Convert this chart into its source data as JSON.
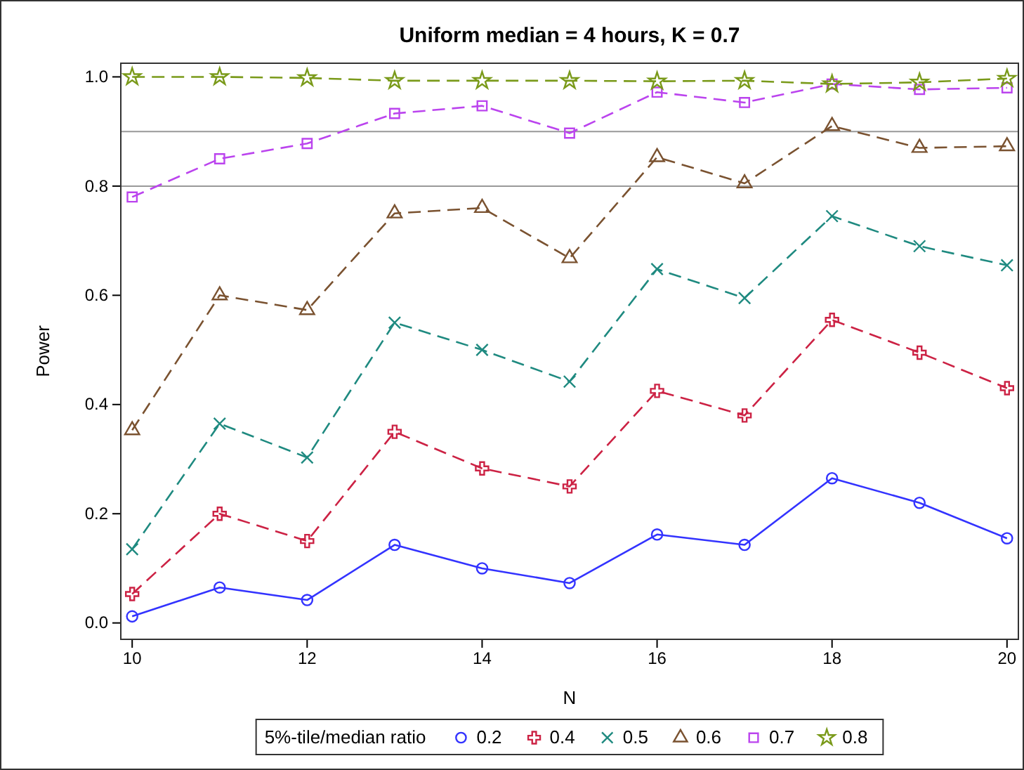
{
  "chart_data": {
    "type": "line",
    "title": "Uniform median = 4 hours, K = 0.7",
    "xlabel": "N",
    "ylabel": "Power",
    "legend_title": "5%-tile/median ratio",
    "legend": "bottom",
    "grid": false,
    "x": [
      10,
      11,
      12,
      13,
      14,
      15,
      16,
      17,
      18,
      19,
      20
    ],
    "xlim": [
      9.87,
      20.13
    ],
    "xticks": [
      10,
      12,
      14,
      16,
      18,
      20
    ],
    "ylim": [
      -0.03,
      1.025
    ],
    "yticks": [
      {
        "value": 0,
        "label": "0.0"
      },
      {
        "value": 0.2,
        "label": "0.2"
      },
      {
        "value": 0.4,
        "label": "0.4"
      },
      {
        "value": 0.6,
        "label": "0.6"
      },
      {
        "value": 0.8,
        "label": "0.8"
      },
      {
        "value": 1,
        "label": "1.0"
      }
    ],
    "ref_lines": [
      {
        "axis": "y",
        "value": 0.8,
        "color": "#999999"
      },
      {
        "axis": "y",
        "value": 0.9,
        "color": "#999999"
      }
    ],
    "series": [
      {
        "name": "0.2",
        "color": "#3333ff",
        "marker": "circle",
        "line_style": "solid",
        "values": [
          0.012,
          0.065,
          0.042,
          0.143,
          0.1,
          0.073,
          0.162,
          0.143,
          0.265,
          0.22,
          0.155
        ]
      },
      {
        "name": "0.4",
        "color": "#cc2244",
        "marker": "cross",
        "line_style": "dashed",
        "values": [
          0.053,
          0.2,
          0.15,
          0.35,
          0.283,
          0.25,
          0.425,
          0.38,
          0.555,
          0.495,
          0.43
        ]
      },
      {
        "name": "0.5",
        "color": "#1f8a80",
        "marker": "x",
        "line_style": "dashed",
        "values": [
          0.135,
          0.365,
          0.303,
          0.55,
          0.5,
          0.442,
          0.648,
          0.595,
          0.745,
          0.69,
          0.655
        ]
      },
      {
        "name": "0.6",
        "color": "#7a5230",
        "marker": "triangle",
        "line_style": "dashed",
        "values": [
          0.353,
          0.6,
          0.573,
          0.75,
          0.76,
          0.668,
          0.853,
          0.805,
          0.91,
          0.87,
          0.873
        ]
      },
      {
        "name": "0.7",
        "color": "#bb44ee",
        "marker": "square",
        "line_style": "dashed",
        "values": [
          0.78,
          0.85,
          0.878,
          0.933,
          0.947,
          0.897,
          0.972,
          0.953,
          0.987,
          0.977,
          0.98
        ]
      },
      {
        "name": "0.8",
        "color": "#7a9a1a",
        "marker": "star",
        "line_style": "dashed",
        "values": [
          1.0,
          1.0,
          0.998,
          0.993,
          0.993,
          0.993,
          0.992,
          0.993,
          0.987,
          0.99,
          0.997
        ]
      }
    ]
  }
}
